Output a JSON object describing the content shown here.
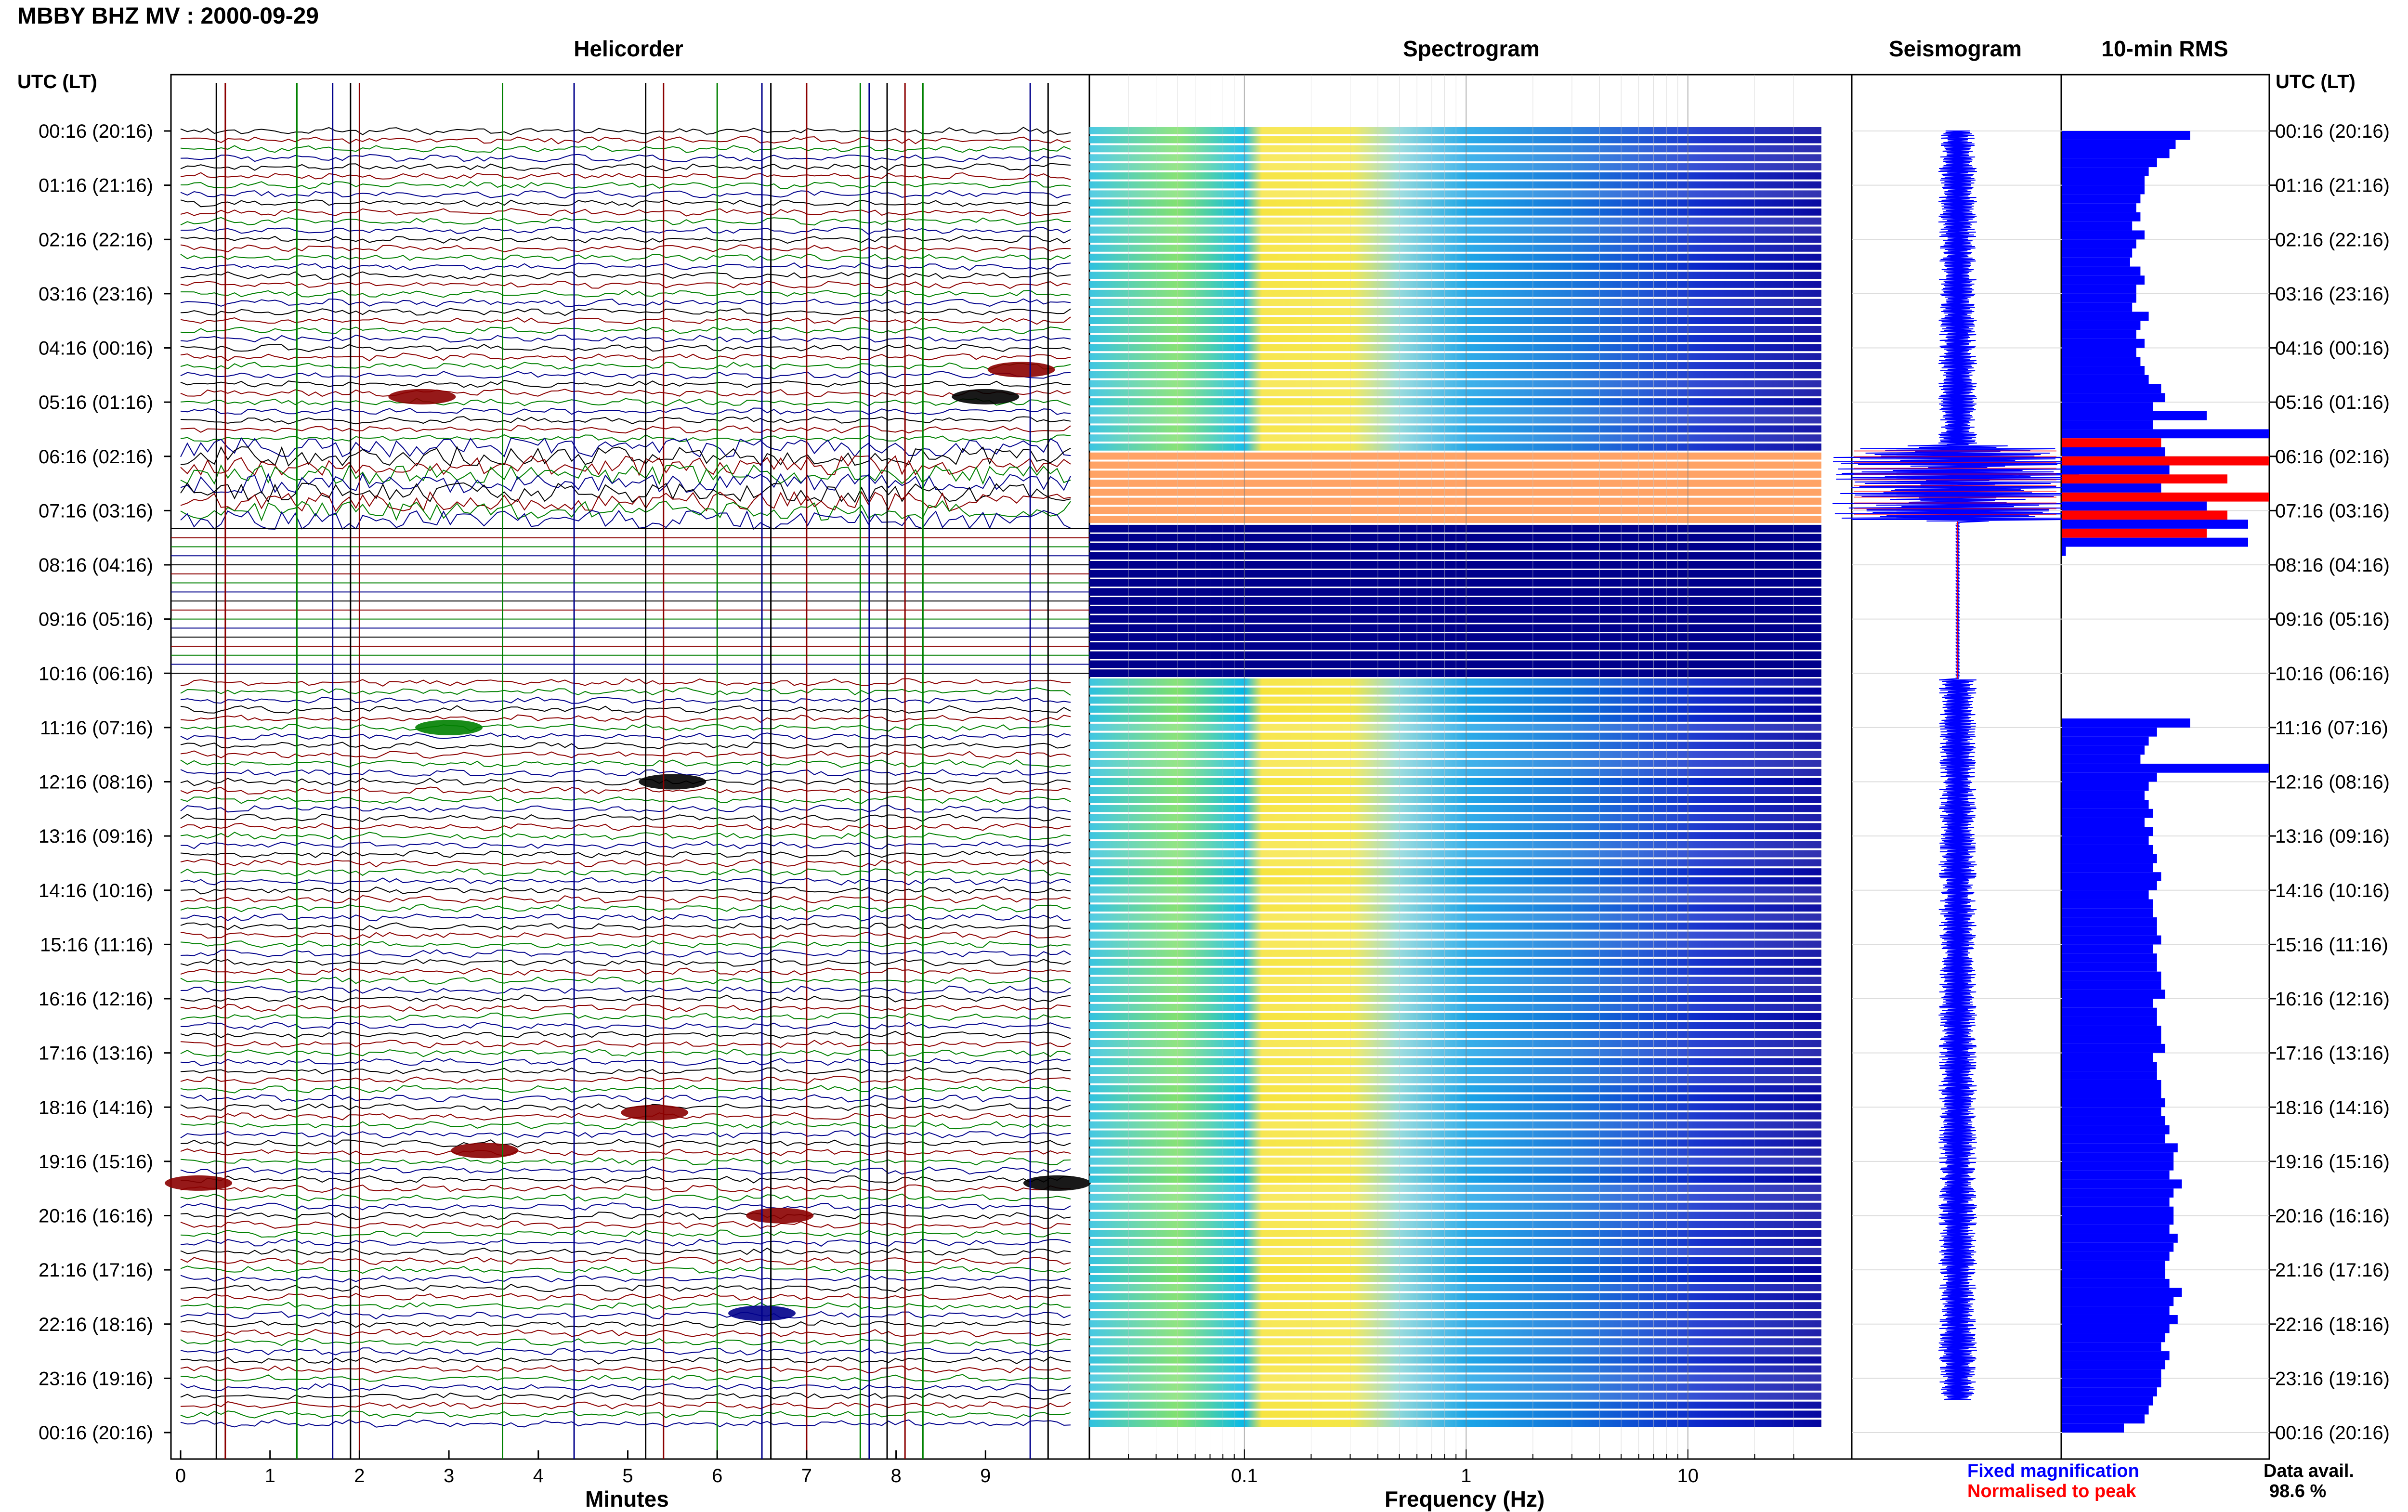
{
  "title": "MBBY BHZ MV : 2000-09-29",
  "panels": {
    "helicorder": "Helicorder",
    "spectrogram": "Spectrogram",
    "seismogram": "Seismogram",
    "rms": "10-min RMS"
  },
  "time_axis_title_left": "UTC (LT)",
  "time_axis_title_right": "UTC (LT)",
  "x_axis_titles": {
    "helicorder": "Minutes",
    "spectrogram": "Frequency (Hz)"
  },
  "legend": {
    "fixed": "Fixed magnification",
    "normalised": "Normalised to peak",
    "fixed_color": "#0000ff",
    "normalised_color": "#ff0000"
  },
  "data_avail": {
    "label": "Data avail.",
    "value": "98.6 %"
  },
  "colors": {
    "trace_cycle": [
      "#000000",
      "#8b0000",
      "#008000",
      "#00008b"
    ],
    "spectrogram_low": "#00008b",
    "spectrogram_high": "#ff0000",
    "rms_bar": "#0000ff",
    "rms_peak": "#ff0000"
  },
  "chart_data": [
    {
      "type": "line",
      "name": "helicorder",
      "xlabel": "Minutes",
      "x_ticks": [
        "0",
        "1",
        "2",
        "3",
        "4",
        "5",
        "6",
        "7",
        "8",
        "9"
      ],
      "xlim": [
        0,
        10
      ],
      "time_ticks": [
        "00:16 (20:16)",
        "01:16 (21:16)",
        "02:16 (22:16)",
        "03:16 (23:16)",
        "04:16 (00:16)",
        "05:16 (01:16)",
        "06:16 (02:16)",
        "07:16 (03:16)",
        "08:16 (04:16)",
        "09:16 (05:16)",
        "10:16 (06:16)",
        "11:16 (07:16)",
        "12:16 (08:16)",
        "13:16 (09:16)",
        "14:16 (10:16)",
        "15:16 (11:16)",
        "16:16 (12:16)",
        "17:16 (13:16)",
        "18:16 (14:16)",
        "19:16 (15:16)",
        "20:16 (16:16)",
        "21:16 (17:16)",
        "22:16 (18:16)",
        "23:16 (19:16)",
        "00:16 (20:16)"
      ],
      "lines_per_hour": 6,
      "gap_hours": [
        7.2,
        10.1
      ],
      "events": [
        {
          "hour": 4.9,
          "minute": 2.7,
          "color": "#8b0000"
        },
        {
          "hour": 4.4,
          "minute": 9.4,
          "color": "#8b0000"
        },
        {
          "hour": 4.9,
          "minute": 9.0,
          "color": "#000000"
        },
        {
          "hour": 11.0,
          "minute": 3.0,
          "color": "#008000"
        },
        {
          "hour": 12.0,
          "minute": 5.5,
          "color": "#000000"
        },
        {
          "hour": 18.1,
          "minute": 5.3,
          "color": "#8b0000"
        },
        {
          "hour": 18.8,
          "minute": 3.4,
          "color": "#8b0000"
        },
        {
          "hour": 20.0,
          "minute": 6.7,
          "color": "#8b0000"
        },
        {
          "hour": 21.8,
          "minute": 6.5,
          "color": "#00008b"
        },
        {
          "hour": 19.4,
          "minute": 0.2,
          "color": "#8b0000"
        },
        {
          "hour": 19.4,
          "minute": 9.8,
          "color": "#000000"
        }
      ]
    },
    {
      "type": "heatmap",
      "name": "spectrogram",
      "xlabel": "Frequency (Hz)",
      "x_scale": "log",
      "xlim": [
        0.02,
        40
      ],
      "x_ticks": [
        "0.1",
        "1",
        "10"
      ],
      "energy_band_hz": [
        0.1,
        0.5
      ],
      "gap_hours": [
        7.2,
        10.1
      ]
    },
    {
      "type": "line",
      "name": "seismogram",
      "gap_hours": [
        7.2,
        10.1
      ]
    },
    {
      "type": "bar",
      "name": "10-min RMS",
      "orientation": "horizontal",
      "bin_minutes": 10,
      "values": [
        0.62,
        0.55,
        0.52,
        0.46,
        0.42,
        0.4,
        0.4,
        0.38,
        0.36,
        0.38,
        0.34,
        0.4,
        0.36,
        0.34,
        0.33,
        0.38,
        0.4,
        0.36,
        0.36,
        0.34,
        0.42,
        0.38,
        0.36,
        0.4,
        0.36,
        0.38,
        0.4,
        0.42,
        0.48,
        0.5,
        0.44,
        0.7,
        0.44,
        1.0,
        0.48,
        0.5,
        1.0,
        0.52,
        0.8,
        0.48,
        1.0,
        0.7,
        0.8,
        0.9,
        0.7,
        0.9,
        0.02,
        0.0,
        0,
        0,
        0,
        0,
        0,
        0,
        0,
        0,
        0,
        0,
        0,
        0,
        0,
        0,
        0,
        0,
        0,
        0.62,
        0.46,
        0.42,
        0.4,
        0.38,
        1.0,
        0.46,
        0.42,
        0.4,
        0.42,
        0.44,
        0.4,
        0.44,
        0.42,
        0.44,
        0.46,
        0.44,
        0.48,
        0.46,
        0.42,
        0.44,
        0.44,
        0.46,
        0.46,
        0.48,
        0.44,
        0.46,
        0.46,
        0.48,
        0.48,
        0.5,
        0.44,
        0.46,
        0.46,
        0.48,
        0.48,
        0.5,
        0.44,
        0.46,
        0.46,
        0.48,
        0.48,
        0.5,
        0.48,
        0.5,
        0.52,
        0.5,
        0.56,
        0.54,
        0.54,
        0.52,
        0.58,
        0.54,
        0.52,
        0.54,
        0.54,
        0.52,
        0.56,
        0.54,
        0.52,
        0.5,
        0.5,
        0.52,
        0.58,
        0.54,
        0.52,
        0.56,
        0.52,
        0.5,
        0.48,
        0.52,
        0.5,
        0.48,
        0.48,
        0.46,
        0.44,
        0.42,
        0.4,
        0.3
      ],
      "peak_bins": [
        34,
        36,
        38,
        40,
        42,
        44
      ]
    }
  ]
}
